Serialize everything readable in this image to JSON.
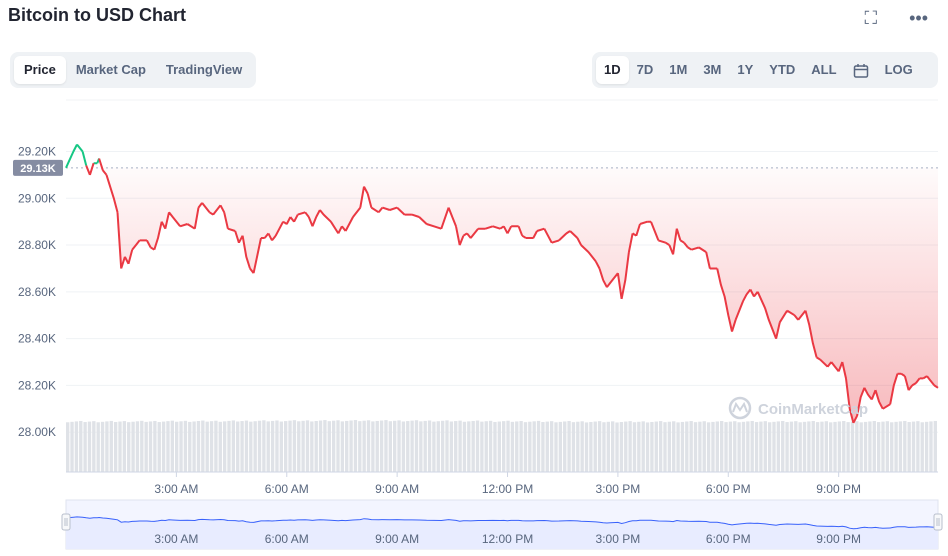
{
  "header": {
    "title": "Bitcoin to USD Chart",
    "fullscreen_icon": "expand-icon",
    "more_icon": "more-dots-icon"
  },
  "tabs": [
    {
      "label": "Price",
      "active": true
    },
    {
      "label": "Market Cap",
      "active": false
    },
    {
      "label": "TradingView",
      "active": false
    }
  ],
  "ranges": [
    {
      "label": "1D",
      "active": true
    },
    {
      "label": "7D"
    },
    {
      "label": "1M"
    },
    {
      "label": "3M"
    },
    {
      "label": "1Y"
    },
    {
      "label": "YTD"
    },
    {
      "label": "ALL"
    }
  ],
  "calendar_icon": "calendar-icon",
  "log_label": "LOG",
  "watermark": "CoinMarketCap",
  "colors": {
    "up": "#16c784",
    "down": "#ea3943",
    "volume": "#dfe2e7",
    "navigator_line": "#3861fb",
    "navigator_fill": "#e8ecff"
  },
  "chart_data": {
    "type": "line",
    "title": "Bitcoin to USD Chart",
    "y_ticks": [
      "29.20K",
      "29.00K",
      "28.80K",
      "28.60K",
      "28.40K",
      "28.20K",
      "28.00K"
    ],
    "y_tick_values": [
      29200,
      29000,
      28800,
      28600,
      28400,
      28200,
      28000
    ],
    "ylim": [
      27830,
      29420
    ],
    "x_ticks": [
      "3:00 AM",
      "6:00 AM",
      "9:00 AM",
      "12:00 PM",
      "3:00 PM",
      "6:00 PM",
      "9:00 PM"
    ],
    "x_tick_hours": [
      3,
      6,
      9,
      12,
      15,
      18,
      21
    ],
    "xlim_hours": [
      0,
      23.7
    ],
    "reference_price": 29130,
    "reference_label": "29.13K",
    "grid": true,
    "series": [
      {
        "values": [
          [
            0.0,
            29130
          ],
          [
            0.2,
            29200
          ],
          [
            0.3,
            29230
          ],
          [
            0.45,
            29200
          ],
          [
            0.55,
            29140
          ],
          [
            0.65,
            29100
          ],
          [
            0.75,
            29150
          ],
          [
            0.85,
            29150
          ],
          [
            0.9,
            29170
          ],
          [
            1.0,
            29120
          ],
          [
            1.1,
            29100
          ],
          [
            1.3,
            29000
          ],
          [
            1.4,
            28940
          ],
          [
            1.5,
            28700
          ],
          [
            1.6,
            28750
          ],
          [
            1.7,
            28720
          ],
          [
            1.8,
            28780
          ],
          [
            1.9,
            28800
          ],
          [
            2.0,
            28820
          ],
          [
            2.2,
            28820
          ],
          [
            2.3,
            28790
          ],
          [
            2.4,
            28780
          ],
          [
            2.5,
            28830
          ],
          [
            2.6,
            28900
          ],
          [
            2.7,
            28870
          ],
          [
            2.8,
            28940
          ],
          [
            2.9,
            28920
          ],
          [
            3.1,
            28880
          ],
          [
            3.3,
            28890
          ],
          [
            3.5,
            28870
          ],
          [
            3.6,
            28960
          ],
          [
            3.7,
            28980
          ],
          [
            3.9,
            28940
          ],
          [
            4.0,
            28930
          ],
          [
            4.2,
            28970
          ],
          [
            4.3,
            28940
          ],
          [
            4.4,
            28870
          ],
          [
            4.6,
            28860
          ],
          [
            4.7,
            28810
          ],
          [
            4.8,
            28840
          ],
          [
            4.9,
            28750
          ],
          [
            5.0,
            28700
          ],
          [
            5.1,
            28680
          ],
          [
            5.3,
            28830
          ],
          [
            5.4,
            28830
          ],
          [
            5.5,
            28850
          ],
          [
            5.6,
            28820
          ],
          [
            5.7,
            28840
          ],
          [
            5.8,
            28870
          ],
          [
            5.9,
            28900
          ],
          [
            6.0,
            28890
          ],
          [
            6.1,
            28920
          ],
          [
            6.2,
            28900
          ],
          [
            6.3,
            28930
          ],
          [
            6.5,
            28940
          ],
          [
            6.6,
            28920
          ],
          [
            6.7,
            28880
          ],
          [
            6.8,
            28920
          ],
          [
            6.9,
            28950
          ],
          [
            7.0,
            28930
          ],
          [
            7.2,
            28900
          ],
          [
            7.4,
            28850
          ],
          [
            7.5,
            28880
          ],
          [
            7.6,
            28860
          ],
          [
            7.8,
            28920
          ],
          [
            8.0,
            28960
          ],
          [
            8.1,
            29050
          ],
          [
            8.2,
            29020
          ],
          [
            8.3,
            28960
          ],
          [
            8.5,
            28940
          ],
          [
            8.6,
            28960
          ],
          [
            8.8,
            28950
          ],
          [
            9.0,
            28960
          ],
          [
            9.2,
            28930
          ],
          [
            9.4,
            28930
          ],
          [
            9.6,
            28920
          ],
          [
            9.8,
            28890
          ],
          [
            10.0,
            28880
          ],
          [
            10.2,
            28870
          ],
          [
            10.4,
            28960
          ],
          [
            10.5,
            28920
          ],
          [
            10.6,
            28880
          ],
          [
            10.7,
            28800
          ],
          [
            10.8,
            28840
          ],
          [
            10.9,
            28850
          ],
          [
            11.0,
            28830
          ],
          [
            11.2,
            28870
          ],
          [
            11.4,
            28870
          ],
          [
            11.6,
            28880
          ],
          [
            11.8,
            28870
          ],
          [
            11.9,
            28880
          ],
          [
            12.0,
            28850
          ],
          [
            12.1,
            28880
          ],
          [
            12.3,
            28880
          ],
          [
            12.4,
            28840
          ],
          [
            12.5,
            28830
          ],
          [
            12.7,
            28830
          ],
          [
            12.8,
            28860
          ],
          [
            13.0,
            28870
          ],
          [
            13.1,
            28840
          ],
          [
            13.2,
            28810
          ],
          [
            13.4,
            28820
          ],
          [
            13.6,
            28850
          ],
          [
            13.7,
            28860
          ],
          [
            13.9,
            28830
          ],
          [
            14.0,
            28800
          ],
          [
            14.2,
            28770
          ],
          [
            14.4,
            28730
          ],
          [
            14.5,
            28700
          ],
          [
            14.6,
            28650
          ],
          [
            14.7,
            28620
          ],
          [
            14.8,
            28640
          ],
          [
            15.0,
            28680
          ],
          [
            15.1,
            28570
          ],
          [
            15.2,
            28650
          ],
          [
            15.3,
            28770
          ],
          [
            15.4,
            28850
          ],
          [
            15.5,
            28840
          ],
          [
            15.6,
            28890
          ],
          [
            15.8,
            28900
          ],
          [
            15.9,
            28900
          ],
          [
            16.1,
            28820
          ],
          [
            16.3,
            28810
          ],
          [
            16.4,
            28800
          ],
          [
            16.5,
            28760
          ],
          [
            16.6,
            28870
          ],
          [
            16.7,
            28820
          ],
          [
            16.8,
            28810
          ],
          [
            16.9,
            28790
          ],
          [
            17.0,
            28780
          ],
          [
            17.2,
            28790
          ],
          [
            17.4,
            28770
          ],
          [
            17.5,
            28700
          ],
          [
            17.7,
            28700
          ],
          [
            17.8,
            28630
          ],
          [
            17.9,
            28580
          ],
          [
            18.0,
            28500
          ],
          [
            18.1,
            28430
          ],
          [
            18.2,
            28480
          ],
          [
            18.4,
            28560
          ],
          [
            18.5,
            28590
          ],
          [
            18.6,
            28610
          ],
          [
            18.7,
            28580
          ],
          [
            18.8,
            28600
          ],
          [
            19.0,
            28530
          ],
          [
            19.1,
            28480
          ],
          [
            19.3,
            28400
          ],
          [
            19.4,
            28470
          ],
          [
            19.6,
            28520
          ],
          [
            19.8,
            28500
          ],
          [
            19.9,
            28480
          ],
          [
            20.1,
            28520
          ],
          [
            20.2,
            28460
          ],
          [
            20.3,
            28380
          ],
          [
            20.4,
            28320
          ],
          [
            20.5,
            28310
          ],
          [
            20.7,
            28280
          ],
          [
            20.8,
            28300
          ],
          [
            20.9,
            28280
          ],
          [
            21.0,
            28260
          ],
          [
            21.1,
            28300
          ],
          [
            21.2,
            28230
          ],
          [
            21.3,
            28100
          ],
          [
            21.4,
            28040
          ],
          [
            21.5,
            28070
          ],
          [
            21.6,
            28150
          ],
          [
            21.7,
            28190
          ],
          [
            21.8,
            28160
          ],
          [
            21.9,
            28140
          ],
          [
            22.0,
            28180
          ],
          [
            22.1,
            28130
          ],
          [
            22.2,
            28100
          ],
          [
            22.4,
            28120
          ],
          [
            22.5,
            28200
          ],
          [
            22.6,
            28250
          ],
          [
            22.7,
            28250
          ],
          [
            22.8,
            28240
          ],
          [
            22.9,
            28180
          ],
          [
            23.0,
            28200
          ],
          [
            23.1,
            28210
          ],
          [
            23.2,
            28230
          ],
          [
            23.3,
            28230
          ],
          [
            23.4,
            28240
          ],
          [
            23.5,
            28220
          ],
          [
            23.6,
            28200
          ],
          [
            23.7,
            28190
          ]
        ]
      }
    ],
    "volume": {
      "shown": true,
      "relative_levels": [
        0.58,
        0.58,
        0.6,
        0.63,
        0.65,
        0.68,
        0.7,
        0.72,
        0.72,
        0.7,
        0.67,
        0.64,
        0.6,
        0.57,
        0.55,
        0.55,
        0.56,
        0.57,
        0.58,
        0.58,
        0.57,
        0.57,
        0.58,
        0.58
      ]
    },
    "navigator": {
      "x_ticks": [
        "3:00 AM",
        "6:00 AM",
        "9:00 AM",
        "12:00 PM",
        "3:00 PM",
        "6:00 PM",
        "9:00 PM"
      ]
    }
  }
}
